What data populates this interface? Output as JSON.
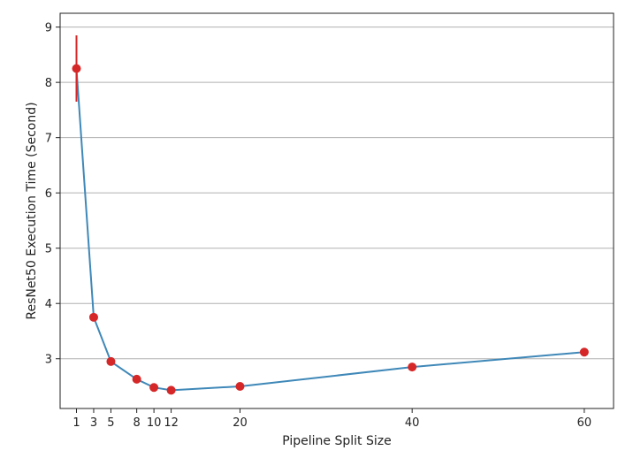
{
  "chart_data": {
    "type": "line",
    "title": "",
    "xlabel": "Pipeline Split Size",
    "ylabel": "ResNet50 Execution Time (Second)",
    "xlim": [
      -0.9,
      63.4
    ],
    "ylim": [
      2.1,
      9.25
    ],
    "xticks": [
      1,
      3,
      5,
      8,
      10,
      12,
      20,
      40,
      60
    ],
    "yticks": [
      3,
      4,
      5,
      6,
      7,
      8,
      9
    ],
    "grid": "horizontal",
    "legend": "none",
    "series": [
      {
        "x": [
          1,
          3,
          5,
          8,
          10,
          12,
          20,
          40,
          60
        ],
        "y": [
          8.25,
          3.75,
          2.95,
          2.63,
          2.48,
          2.43,
          2.5,
          2.85,
          3.12
        ],
        "error": [
          0.6,
          0,
          0,
          0,
          0,
          0,
          0,
          0,
          0
        ],
        "line_color": "#3f88b8",
        "marker_color": "#d62728",
        "error_color": "#d62728"
      }
    ]
  }
}
